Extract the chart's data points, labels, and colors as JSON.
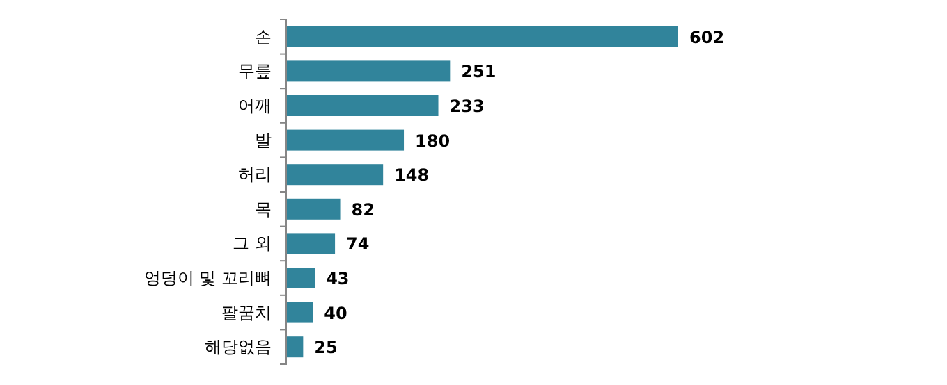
{
  "chart_data": {
    "type": "bar",
    "orientation": "horizontal",
    "categories": [
      "손",
      "무릎",
      "어깨",
      "발",
      "허리",
      "목",
      "그 외",
      "엉덩이 및 꼬리뼈",
      "팔꿈치",
      "해당없음"
    ],
    "values": [
      602,
      251,
      233,
      180,
      148,
      82,
      74,
      43,
      40,
      25
    ],
    "color": "#31849b",
    "data_labels": true
  }
}
